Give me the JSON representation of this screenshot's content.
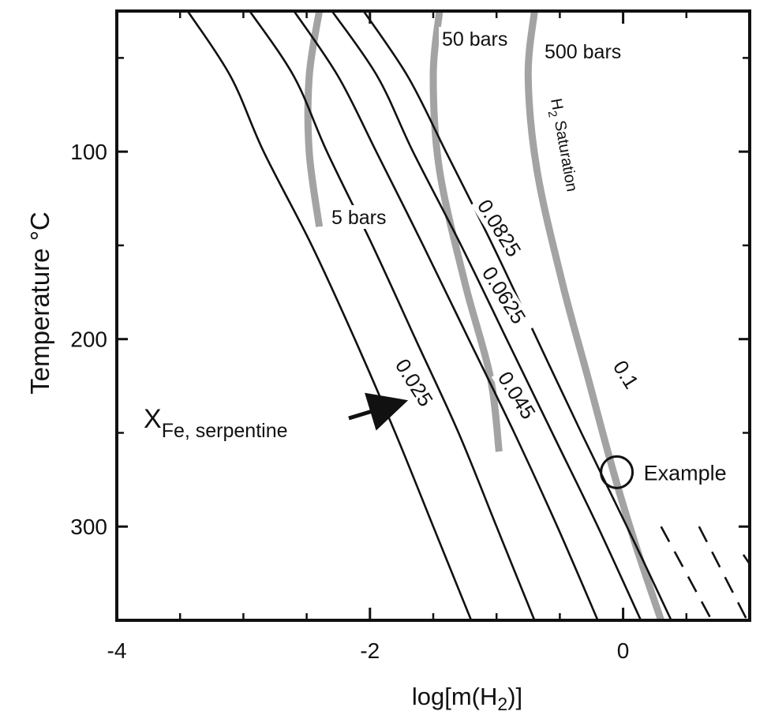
{
  "chart_data": {
    "type": "line",
    "title": "",
    "xlabel_pre": "log[m(H",
    "xlabel_sub": "2",
    "xlabel_post": ")]",
    "ylabel": "Temperature °C",
    "xlim": [
      -4,
      1
    ],
    "ylim": [
      350,
      25
    ],
    "grid": false,
    "x_ticks": [
      {
        "value": -4,
        "label": "-4"
      },
      {
        "value": -2,
        "label": "-2"
      },
      {
        "value": 0,
        "label": "0"
      }
    ],
    "x_minor_ticks": [
      -3.5,
      -3,
      -2.5,
      -1.5,
      -1,
      -0.5,
      0.5,
      1
    ],
    "y_ticks": [
      {
        "value": 100,
        "label": "100"
      },
      {
        "value": 200,
        "label": "200"
      },
      {
        "value": 300,
        "label": "300"
      }
    ],
    "y_minor_ticks": [
      50,
      150,
      250
    ],
    "composition_series": [
      {
        "name": "0.025",
        "points": [
          [
            -3.44,
            25
          ],
          [
            -3.1,
            60
          ],
          [
            -2.84,
            100
          ],
          [
            -2.46,
            150
          ],
          [
            -2.12,
            200
          ],
          [
            -1.8,
            250
          ],
          [
            -1.5,
            300
          ],
          [
            -1.2,
            350
          ]
        ],
        "dashed_from": null
      },
      {
        "name": "0.045",
        "points": [
          [
            -2.95,
            25
          ],
          [
            -2.6,
            60
          ],
          [
            -2.34,
            100
          ],
          [
            -1.98,
            150
          ],
          [
            -1.64,
            200
          ],
          [
            -1.3,
            250
          ],
          [
            -1.0,
            300
          ],
          [
            -0.7,
            350
          ]
        ],
        "dashed_from": null
      },
      {
        "name": "0.0625",
        "points": [
          [
            -2.6,
            25
          ],
          [
            -2.25,
            60
          ],
          [
            -1.95,
            100
          ],
          [
            -1.58,
            150
          ],
          [
            -1.22,
            200
          ],
          [
            -0.86,
            250
          ],
          [
            -0.52,
            300
          ],
          [
            -0.2,
            350
          ]
        ],
        "dashed_from": null
      },
      {
        "name": "0.0825",
        "points": [
          [
            -2.3,
            25
          ],
          [
            -1.94,
            60
          ],
          [
            -1.66,
            100
          ],
          [
            -1.28,
            150
          ],
          [
            -0.92,
            200
          ],
          [
            -0.56,
            250
          ],
          [
            -0.2,
            300
          ],
          [
            0.14,
            350
          ]
        ],
        "dashed_from": 1
      },
      {
        "name": "0.1",
        "points": [
          [
            -2.05,
            25
          ],
          [
            -1.7,
            60
          ],
          [
            -1.4,
            100
          ],
          [
            -1.03,
            150
          ],
          [
            -0.68,
            200
          ],
          [
            -0.33,
            250
          ],
          [
            0.03,
            300
          ],
          [
            0.38,
            350
          ]
        ],
        "dashed_from": 0.9
      },
      {
        "name": "",
        "points": [
          [
            0.3,
            300
          ],
          [
            0.7,
            350
          ]
        ],
        "dashed_from": 0.3
      },
      {
        "name": "",
        "points": [
          [
            0.6,
            300
          ],
          [
            0.98,
            350
          ]
        ],
        "dashed_from": 0.6
      },
      {
        "name": "",
        "points": [
          [
            0.95,
            315
          ],
          [
            1.0,
            320
          ]
        ],
        "dashed_from": 0.95
      }
    ],
    "pressure_series": [
      {
        "name": "5 bars",
        "points": [
          [
            -2.4,
            25
          ],
          [
            -2.48,
            60
          ],
          [
            -2.48,
            100
          ],
          [
            -2.4,
            140
          ]
        ]
      },
      {
        "name": "50 bars",
        "points": [
          [
            -1.45,
            25
          ],
          [
            -1.5,
            60
          ],
          [
            -1.45,
            110
          ],
          [
            -1.25,
            170
          ],
          [
            -1.05,
            220
          ],
          [
            -0.98,
            260
          ]
        ]
      },
      {
        "name": "500 bars",
        "points": [
          [
            -0.7,
            25
          ],
          [
            -0.75,
            60
          ],
          [
            -0.68,
            110
          ],
          [
            -0.48,
            170
          ],
          [
            -0.28,
            220
          ],
          [
            -0.08,
            270
          ],
          [
            0.1,
            310
          ],
          [
            0.3,
            350
          ]
        ]
      }
    ],
    "curve_label_h2_saturation_pre": "H",
    "curve_label_h2_saturation_sub": "2",
    "curve_label_h2_saturation_post": " Saturation",
    "annotation_example": {
      "label": "Example",
      "x": -0.05,
      "y": 271
    },
    "annotation_xfe": {
      "main": "X",
      "sub": "Fe, serpentine",
      "arrow_to": [
        -1.8,
        248
      ]
    }
  }
}
